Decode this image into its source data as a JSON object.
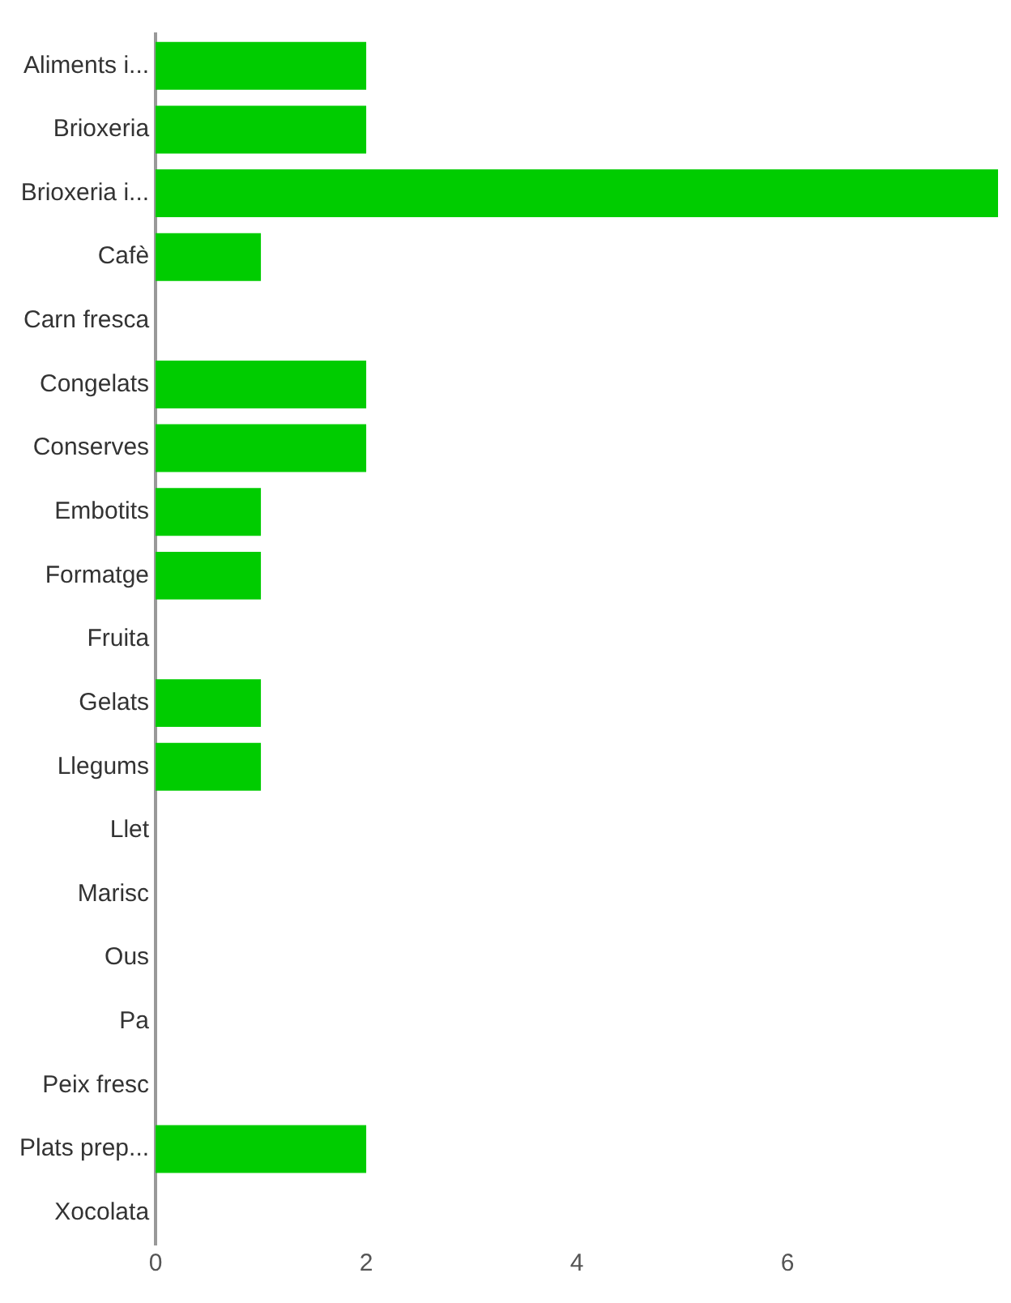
{
  "chart_data": {
    "type": "bar",
    "orientation": "horizontal",
    "categories": [
      "Aliments i...",
      "Brioxeria",
      "Brioxeria i...",
      "Cafè",
      "Carn fresca",
      "Congelats",
      "Conserves",
      "Embotits",
      "Formatge",
      "Fruita",
      "Gelats",
      "Llegums",
      "Llet",
      "Marisc",
      "Ous",
      "Pa",
      "Peix fresc",
      "Plats prep...",
      "Xocolata"
    ],
    "values": [
      2,
      2,
      8,
      1,
      0,
      2,
      2,
      1,
      1,
      0,
      1,
      1,
      0,
      0,
      0,
      0,
      0,
      2,
      0
    ],
    "color": "#00cc00",
    "xlim": [
      0,
      8
    ],
    "xticks": [
      0,
      2,
      4,
      6
    ],
    "grid": false,
    "legend": false
  }
}
